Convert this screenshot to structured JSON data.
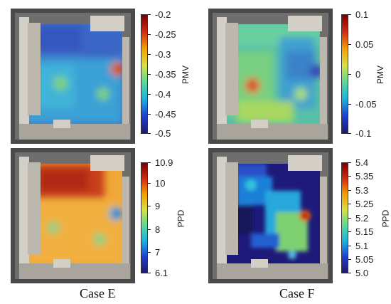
{
  "panels": {
    "e_pmv": {
      "unit": "PMV",
      "ticks": [
        "-0.2",
        "-0.25",
        "-0.3",
        "-0.35",
        "-0.4",
        "-0.45",
        "-0.5"
      ],
      "colormap": "jet"
    },
    "f_pmv": {
      "unit": "PMV",
      "ticks": [
        "0.1",
        "0.05",
        "0",
        "-0.05",
        "-0.1"
      ],
      "colormap": "jet"
    },
    "e_ppd": {
      "unit": "PPD",
      "ticks": [
        "10.9",
        "10",
        "9",
        "8",
        "7",
        "6.1"
      ],
      "colormap": "jet"
    },
    "f_ppd": {
      "unit": "PPD",
      "ticks": [
        "5.4",
        "5.35",
        "5.3",
        "5.25",
        "5.2",
        "5.15",
        "5.1",
        "5.05",
        "5.0"
      ],
      "colormap": "jet"
    }
  },
  "captions": {
    "left": "Case E",
    "right": "Case F"
  }
}
